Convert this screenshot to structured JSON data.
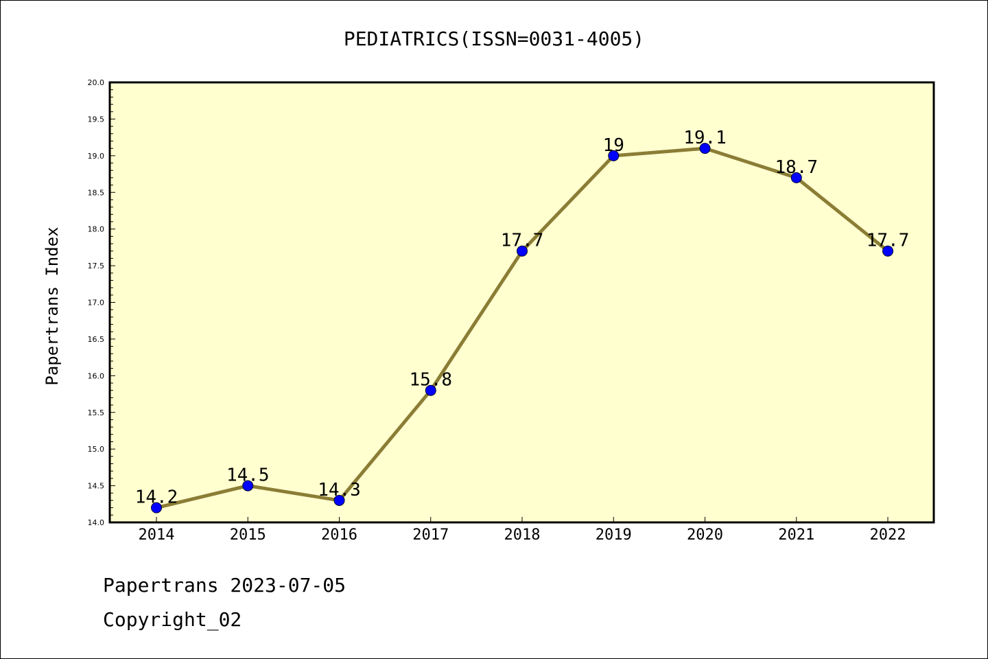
{
  "chart_data": {
    "type": "line",
    "title": "PEDIATRICS(ISSN=0031-4005)",
    "xlabel": "",
    "ylabel": "Papertrans Index",
    "categories": [
      "2014",
      "2015",
      "2016",
      "2017",
      "2018",
      "2019",
      "2020",
      "2021",
      "2022"
    ],
    "series": [
      {
        "values": [
          14.2,
          14.5,
          14.3,
          15.8,
          17.7,
          19.0,
          19.1,
          18.7,
          17.7
        ],
        "labels": [
          "14.2",
          "14.5",
          "14.3",
          "15.8",
          "17.7",
          "19",
          "19.1",
          "18.7",
          "17.7"
        ]
      }
    ],
    "ylim": [
      14.0,
      20.0
    ],
    "yticks": [
      "14.0",
      "14.5",
      "15.0",
      "15.5",
      "16.0",
      "16.5",
      "17.0",
      "17.5",
      "18.0",
      "18.5",
      "19.0",
      "19.5",
      "20.0"
    ],
    "grid": false,
    "colors": {
      "plot_background": "#ffffd0",
      "line": "#8b7d35",
      "marker": "#0000ff",
      "text": "#000000"
    }
  },
  "footer": {
    "date_line": "Papertrans 2023-07-05",
    "copyright": "Copyright_02"
  }
}
